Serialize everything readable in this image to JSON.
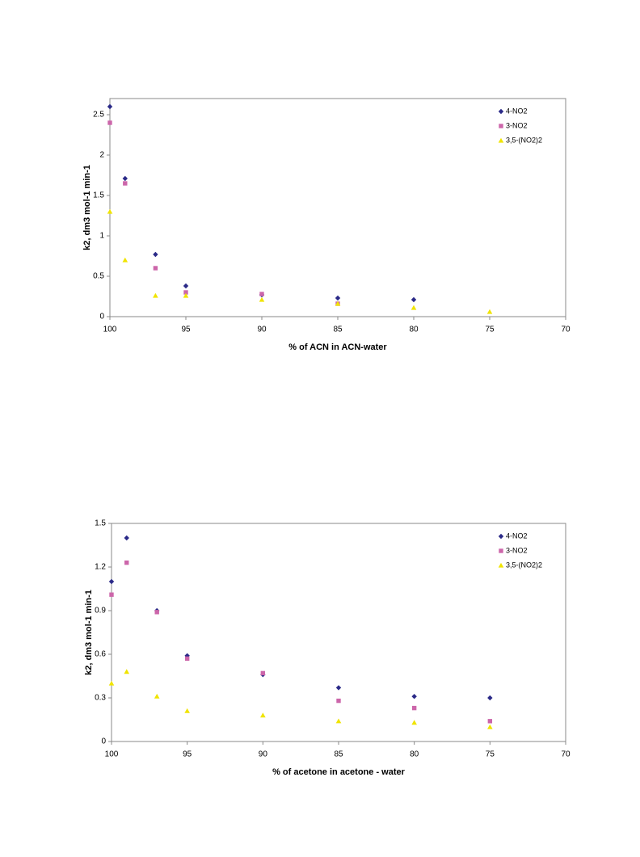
{
  "chart_data": [
    {
      "type": "scatter",
      "x_label": "% of ACN in ACN-water",
      "y_label": "k2, dm3 mol-1 min-1",
      "x": [
        100,
        99,
        97,
        95,
        90,
        85,
        80,
        75
      ],
      "xlim": [
        100,
        70
      ],
      "xticks": [
        100,
        95,
        90,
        85,
        80,
        75,
        70
      ],
      "ylim": [
        0,
        2.7
      ],
      "yticks": [
        0,
        0.5,
        1,
        1.5,
        2,
        2.5
      ],
      "legend": "upper right",
      "series": [
        {
          "name": "4-NO2",
          "color": "#2b2a88",
          "marker": "diamond",
          "values": [
            2.6,
            1.71,
            0.77,
            0.38,
            0.27,
            0.23,
            0.21,
            null
          ]
        },
        {
          "name": "3-NO2",
          "color": "#cc66aa",
          "marker": "square",
          "values": [
            2.4,
            1.65,
            0.6,
            0.3,
            0.28,
            0.16,
            null,
            null
          ]
        },
        {
          "name": "3,5-(NO2)2",
          "color": "#f0e400",
          "marker": "triangle",
          "values": [
            1.3,
            0.7,
            0.26,
            0.26,
            0.21,
            0.16,
            0.11,
            0.06
          ]
        }
      ]
    },
    {
      "type": "scatter",
      "x_label": "% of acetone in acetone - water",
      "y_label": "k2, dm3 mol-1 min-1",
      "x": [
        100,
        99,
        97,
        95,
        90,
        85,
        80,
        75
      ],
      "xlim": [
        100,
        70
      ],
      "xticks": [
        100,
        95,
        90,
        85,
        80,
        75,
        70
      ],
      "ylim": [
        0,
        1.5
      ],
      "yticks": [
        0,
        0.3,
        0.6,
        0.9,
        1.2,
        1.5
      ],
      "legend": "upper right",
      "series": [
        {
          "name": "4-NO2",
          "color": "#2b2a88",
          "marker": "diamond",
          "values": [
            1.1,
            1.4,
            0.9,
            0.59,
            0.46,
            0.37,
            0.31,
            0.3
          ]
        },
        {
          "name": "3-NO2",
          "color": "#cc66aa",
          "marker": "square",
          "values": [
            1.01,
            1.23,
            0.89,
            0.57,
            0.47,
            0.28,
            0.23,
            0.14
          ]
        },
        {
          "name": "3,5-(NO2)2",
          "color": "#f0e400",
          "marker": "triangle",
          "values": [
            0.4,
            0.48,
            0.31,
            0.21,
            0.18,
            0.14,
            0.13,
            0.1
          ]
        }
      ]
    }
  ]
}
